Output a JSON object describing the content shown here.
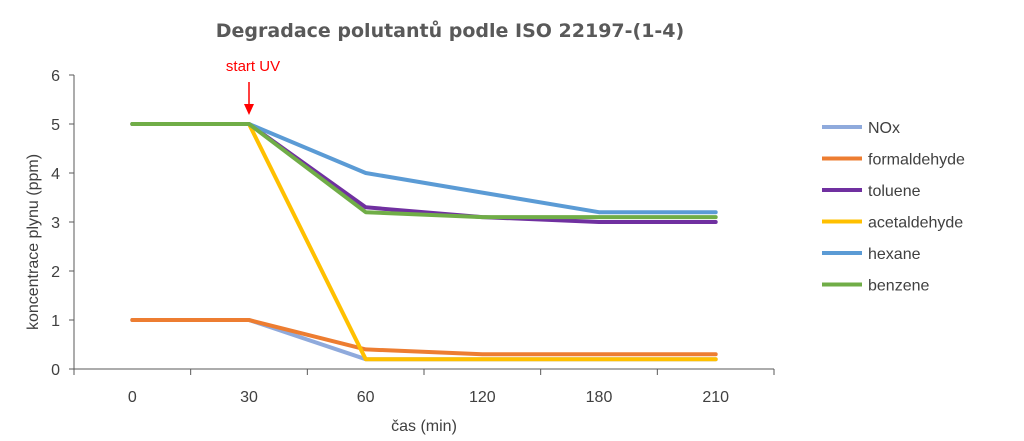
{
  "chart_data": {
    "type": "line",
    "title": "Degradace polutantů podle ISO 22197-(1-4)",
    "xlabel": "čas (min)",
    "ylabel": "koncentrace plynu (ppm)",
    "categories": [
      "0",
      "30",
      "60",
      "120",
      "180",
      "210"
    ],
    "ylim": [
      0,
      6
    ],
    "yticks": [
      "0",
      "1",
      "2",
      "3",
      "4",
      "5",
      "6"
    ],
    "grid": false,
    "legend_position": "right",
    "annotation": {
      "text": "start UV",
      "at_category": "30",
      "color": "#ff0000"
    },
    "series": [
      {
        "name": "NOx",
        "color": "#8faadc",
        "values": [
          1,
          1,
          0.2,
          0.2,
          0.2,
          0.2
        ]
      },
      {
        "name": "formaldehyde",
        "color": "#ed7d31",
        "values": [
          1,
          1,
          0.4,
          0.3,
          0.3,
          0.3
        ]
      },
      {
        "name": "toluene",
        "color": "#7030a0",
        "values": [
          5,
          5,
          3.3,
          3.1,
          3.0,
          3.0
        ]
      },
      {
        "name": "acetaldehyde",
        "color": "#ffc000",
        "values": [
          5,
          5,
          0.2,
          0.2,
          0.2,
          0.2
        ]
      },
      {
        "name": "hexane",
        "color": "#5b9bd5",
        "values": [
          5,
          5,
          4.0,
          3.6,
          3.2,
          3.2
        ]
      },
      {
        "name": "benzene",
        "color": "#70ad47",
        "values": [
          5,
          5,
          3.2,
          3.1,
          3.1,
          3.1
        ]
      }
    ]
  }
}
